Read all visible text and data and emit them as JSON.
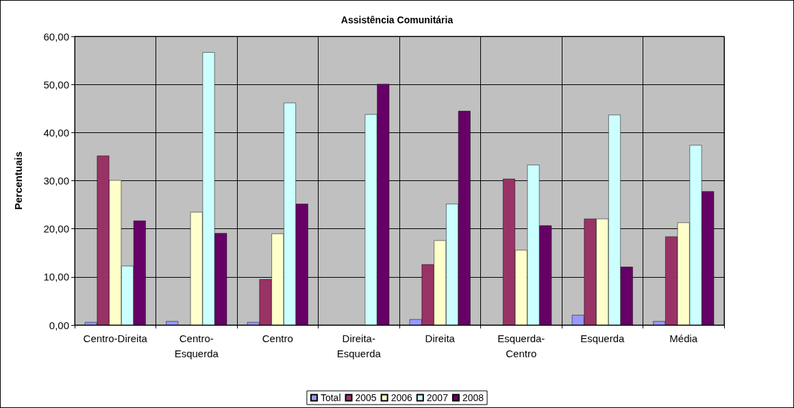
{
  "chart_data": {
    "type": "bar",
    "title": "Assistência Comunitária",
    "ylabel": "Percentuais",
    "categories": [
      "Centro-Direita",
      "Centro-Esquerda",
      "Centro",
      "Direita-Esquerda",
      "Direita",
      "Esquerda-Centro",
      "Esquerda",
      "Média"
    ],
    "series": [
      {
        "name": "Total",
        "color": "#9999ff",
        "values": [
          0.6,
          0.8,
          0.6,
          null,
          1.2,
          null,
          2.1,
          0.8
        ]
      },
      {
        "name": "2005",
        "color": "#993366",
        "values": [
          35.2,
          null,
          9.5,
          null,
          12.6,
          30.4,
          22.1,
          18.4
        ]
      },
      {
        "name": "2006",
        "color": "#ffffcc",
        "values": [
          30.1,
          23.5,
          19.0,
          null,
          17.6,
          15.6,
          22.1,
          21.3
        ]
      },
      {
        "name": "2007",
        "color": "#ccffff",
        "values": [
          12.3,
          56.7,
          46.2,
          43.8,
          25.2,
          33.3,
          43.7,
          37.4
        ]
      },
      {
        "name": "2008",
        "color": "#660066",
        "values": [
          21.7,
          19.1,
          25.2,
          50.1,
          44.5,
          20.7,
          12.1,
          27.8
        ]
      }
    ],
    "ylim": [
      0,
      60
    ],
    "yticks": [
      {
        "value": 0,
        "label": "0,00"
      },
      {
        "value": 10,
        "label": "10,00"
      },
      {
        "value": 20,
        "label": "20,00"
      },
      {
        "value": 30,
        "label": "30,00"
      },
      {
        "value": 40,
        "label": "40,00"
      },
      {
        "value": 50,
        "label": "50,00"
      },
      {
        "value": 60,
        "label": "60,00"
      }
    ],
    "grid": true,
    "legend": "bottom"
  }
}
